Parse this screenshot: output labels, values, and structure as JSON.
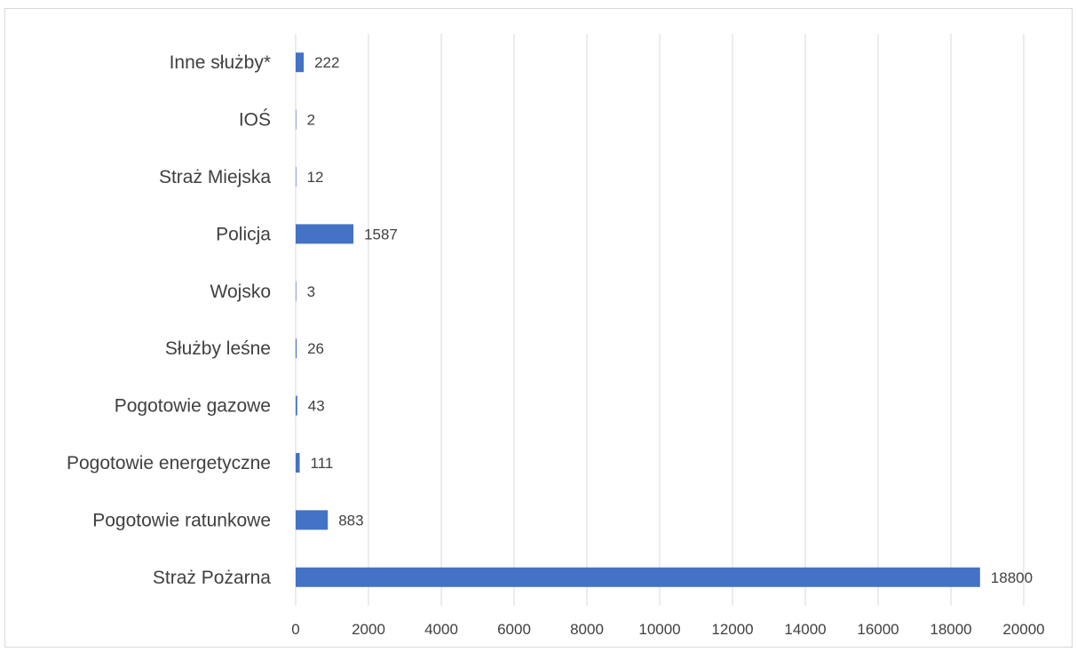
{
  "chart_data": {
    "type": "bar",
    "orientation": "horizontal",
    "categories": [
      "Straż Pożarna",
      "Pogotowie ratunkowe",
      "Pogotowie energetyczne",
      "Pogotowie gazowe",
      "Służby leśne",
      "Wojsko",
      "Policja",
      "Straż Miejska",
      "IOŚ",
      "Inne służby*"
    ],
    "values": [
      18800,
      883,
      111,
      43,
      26,
      3,
      1587,
      12,
      2,
      222
    ],
    "data_labels": [
      "18800",
      "883",
      "111",
      "43",
      "26",
      "3",
      "1587",
      "12",
      "2",
      "222"
    ],
    "x_ticks": [
      "0",
      "2000",
      "4000",
      "6000",
      "8000",
      "10000",
      "12000",
      "14000",
      "16000",
      "18000",
      "20000"
    ],
    "xlim": [
      0,
      20000
    ],
    "title": "",
    "xlabel": "",
    "ylabel": "",
    "grid": "vertical",
    "legend": "none",
    "bar_color": "#4472c4",
    "grid_color": "#d9d9d9",
    "text_color": "#404040"
  }
}
